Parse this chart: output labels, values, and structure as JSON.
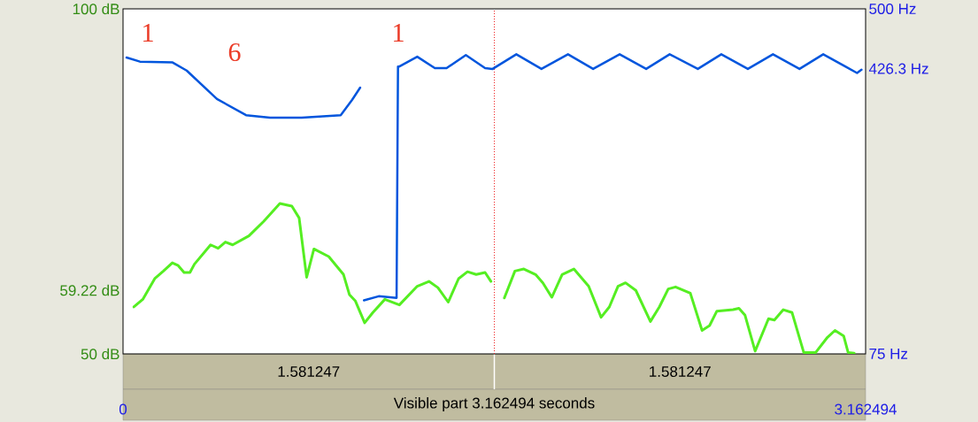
{
  "chart_data": {
    "type": "line",
    "xlabel": "Visible part 3.162494 seconds",
    "xlim": [
      0,
      3.162494
    ],
    "xticks": [
      0,
      3.162494
    ],
    "ylim": [
      50,
      100
    ],
    "yticks": [
      {
        "value": 50,
        "label": "50 dB"
      },
      {
        "value": 59.22,
        "label": "59.22 dB"
      },
      {
        "value": 100,
        "label": "100 dB"
      }
    ],
    "y2lim": [
      75,
      500
    ],
    "y2ticks": [
      {
        "value": 75,
        "label": "75 Hz"
      },
      {
        "value": 426.3,
        "label": "426.3 Hz"
      },
      {
        "value": 500,
        "label": "500 Hz"
      }
    ],
    "series": [
      {
        "color": "#0055dd",
        "axis": "y2",
        "x": [
          0.015,
          0.072,
          0.211,
          0.271,
          0.4,
          0.524,
          0.626,
          0.761,
          0.927,
          0.976,
          1.01,
          1.018,
          1.026,
          1.089,
          1.165,
          1.171,
          1.177,
          1.253,
          1.328,
          1.378,
          1.46,
          1.542,
          1.574,
          1.675,
          1.782,
          1.895,
          2.002,
          2.115,
          2.228,
          2.328,
          2.448,
          2.548,
          2.661,
          2.768,
          2.881,
          2.982,
          3.076,
          3.126,
          3.145
        ],
        "values": [
          440,
          435,
          434,
          424,
          389,
          369,
          366,
          366,
          369,
          388,
          403,
          null,
          141,
          146,
          144,
          429,
          429,
          441,
          427,
          427,
          443,
          427,
          426,
          444,
          426,
          444,
          426,
          444,
          426,
          444,
          426,
          444,
          426,
          444,
          426,
          444,
          429,
          421,
          425
        ]
      },
      {
        "color": "#55ee22",
        "x": [
          0.046,
          0.084,
          0.135,
          0.172,
          0.21,
          0.235,
          0.26,
          0.285,
          0.304,
          0.373,
          0.405,
          0.436,
          0.467,
          0.536,
          0.599,
          0.668,
          0.719,
          0.75,
          0.782,
          0.813,
          0.876,
          0.939,
          0.964,
          0.989,
          1.029,
          1.064,
          1.115,
          1.177,
          1.253,
          1.303,
          1.341,
          1.385,
          1.429,
          1.467,
          1.504,
          1.542,
          1.567,
          1.6,
          1.624,
          1.669,
          1.707,
          1.757,
          1.788,
          1.826,
          1.87,
          1.92,
          1.983,
          2.036,
          2.071,
          2.108,
          2.14,
          2.184,
          2.246,
          2.284,
          2.322,
          2.353,
          2.416,
          2.466,
          2.498,
          2.529,
          2.598,
          2.623,
          2.649,
          2.692,
          2.749,
          2.774,
          2.812,
          2.849,
          2.899,
          2.95,
          3.0,
          3.032,
          3.069,
          3.088,
          3.114
        ],
        "values": [
          56.8,
          57.9,
          60.9,
          62.0,
          63.2,
          62.8,
          61.8,
          61.8,
          63.0,
          65.8,
          65.3,
          66.2,
          65.8,
          67.1,
          69.2,
          71.8,
          71.4,
          69.7,
          61.1,
          65.2,
          64.1,
          61.5,
          58.6,
          57.7,
          54.5,
          56.0,
          57.9,
          57.1,
          59.8,
          60.5,
          59.6,
          57.5,
          60.9,
          61.9,
          61.5,
          61.8,
          60.5,
          null,
          58.1,
          62.0,
          62.3,
          61.5,
          60.3,
          58.2,
          61.5,
          62.3,
          59.8,
          55.3,
          56.8,
          59.8,
          60.3,
          59.2,
          54.7,
          56.8,
          59.4,
          59.7,
          58.8,
          53.4,
          54.1,
          56.2,
          56.4,
          56.6,
          55.6,
          50.4,
          55.1,
          54.9,
          56.4,
          56.0,
          50.2,
          50.2,
          52.4,
          53.4,
          52.6,
          50.2,
          50.1
        ]
      }
    ],
    "ref_lines": [
      {
        "axis": "x",
        "value": 1.581247,
        "color": "#ee2222",
        "line_style": "dotted"
      }
    ],
    "annotations": [
      "1",
      "6",
      "1",
      "1.581247",
      "1.581247"
    ]
  }
}
